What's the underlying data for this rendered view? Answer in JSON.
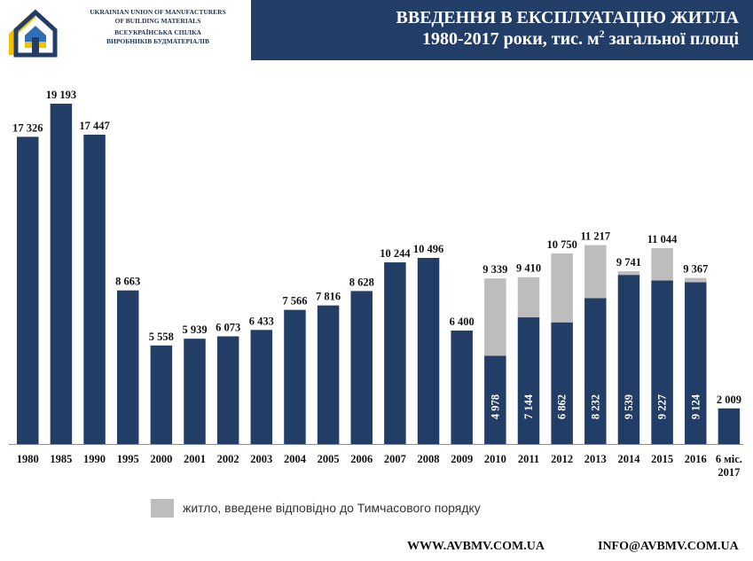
{
  "header": {
    "org_en_line1": "UKRAINIAN UNION OF MANUFACTURERS",
    "org_en_line2": "OF BUILDING MATERIALS",
    "org_ua_line1": "ВСЕУКРАЇНСЬКА СПІЛКА",
    "org_ua_line2": "ВИРОБНИКІВ БУДМАТЕРІАЛІВ",
    "title_line1": "ВВЕДЕННЯ В ЕКСПЛУАТАЦІЮ ЖИТЛА",
    "title_line2_pre": "1980-2017 роки, тис. м",
    "title_line2_sup": "2",
    "title_line2_post": " загальної площі"
  },
  "logo": {
    "icon": "house-with-ukrainian-flag-logo"
  },
  "legend": {
    "label": "житло, введене відповідно до Тимчасового порядку"
  },
  "footer": {
    "website": "WWW.AVBMV.COM.UA",
    "email": "INFO@AVBMV.COM.UA"
  },
  "colors": {
    "bar": "#233e66",
    "temporary": "#bdbdbd",
    "title_bg": "#233e66",
    "text": "#111111"
  },
  "chart_data": {
    "type": "bar",
    "stacked": true,
    "categories": [
      "1980",
      "1985",
      "1990",
      "1995",
      "2000",
      "2001",
      "2002",
      "2003",
      "2004",
      "2005",
      "2006",
      "2007",
      "2008",
      "2009",
      "2010",
      "2011",
      "2012",
      "2013",
      "2014",
      "2015",
      "2016",
      "6 міс. 2017"
    ],
    "series": [
      {
        "values": [
          17326,
          19193,
          17447,
          8663,
          5558,
          5939,
          6073,
          6433,
          7566,
          7816,
          8628,
          10244,
          10496,
          6400,
          4978,
          7144,
          6862,
          8232,
          9539,
          9227,
          9124,
          2009
        ]
      },
      {
        "name": "житло, введене відповідно до Тимчасового порядку",
        "values": [
          0,
          0,
          0,
          0,
          0,
          0,
          0,
          0,
          0,
          0,
          0,
          0,
          0,
          0,
          4361,
          2266,
          3888,
          2985,
          202,
          1817,
          243,
          0
        ]
      }
    ],
    "totals": [
      17326,
      19193,
      17447,
      8663,
      5558,
      5939,
      6073,
      6433,
      7566,
      7816,
      8628,
      10244,
      10496,
      6400,
      9339,
      9410,
      10750,
      11217,
      9741,
      11044,
      9367,
      2009
    ],
    "total_labels": [
      "17 326",
      "19 193",
      "17 447",
      "8 663",
      "5 558",
      "5 939",
      "6 073",
      "6 433",
      "7 566",
      "7 816",
      "8 628",
      "10 244",
      "10 496",
      "6 400",
      "9 339",
      "9 410",
      "10 750",
      "11 217",
      "9 741",
      "11 044",
      "9 367",
      "2 009"
    ],
    "inner_labels": [
      "",
      "",
      "",
      "",
      "",
      "",
      "",
      "",
      "",
      "",
      "",
      "",
      "",
      "",
      "4 978",
      "7 144",
      "6 862",
      "8 232",
      "9 539",
      "9 227",
      "9 124",
      ""
    ],
    "ylim": [
      0,
      19193
    ]
  }
}
